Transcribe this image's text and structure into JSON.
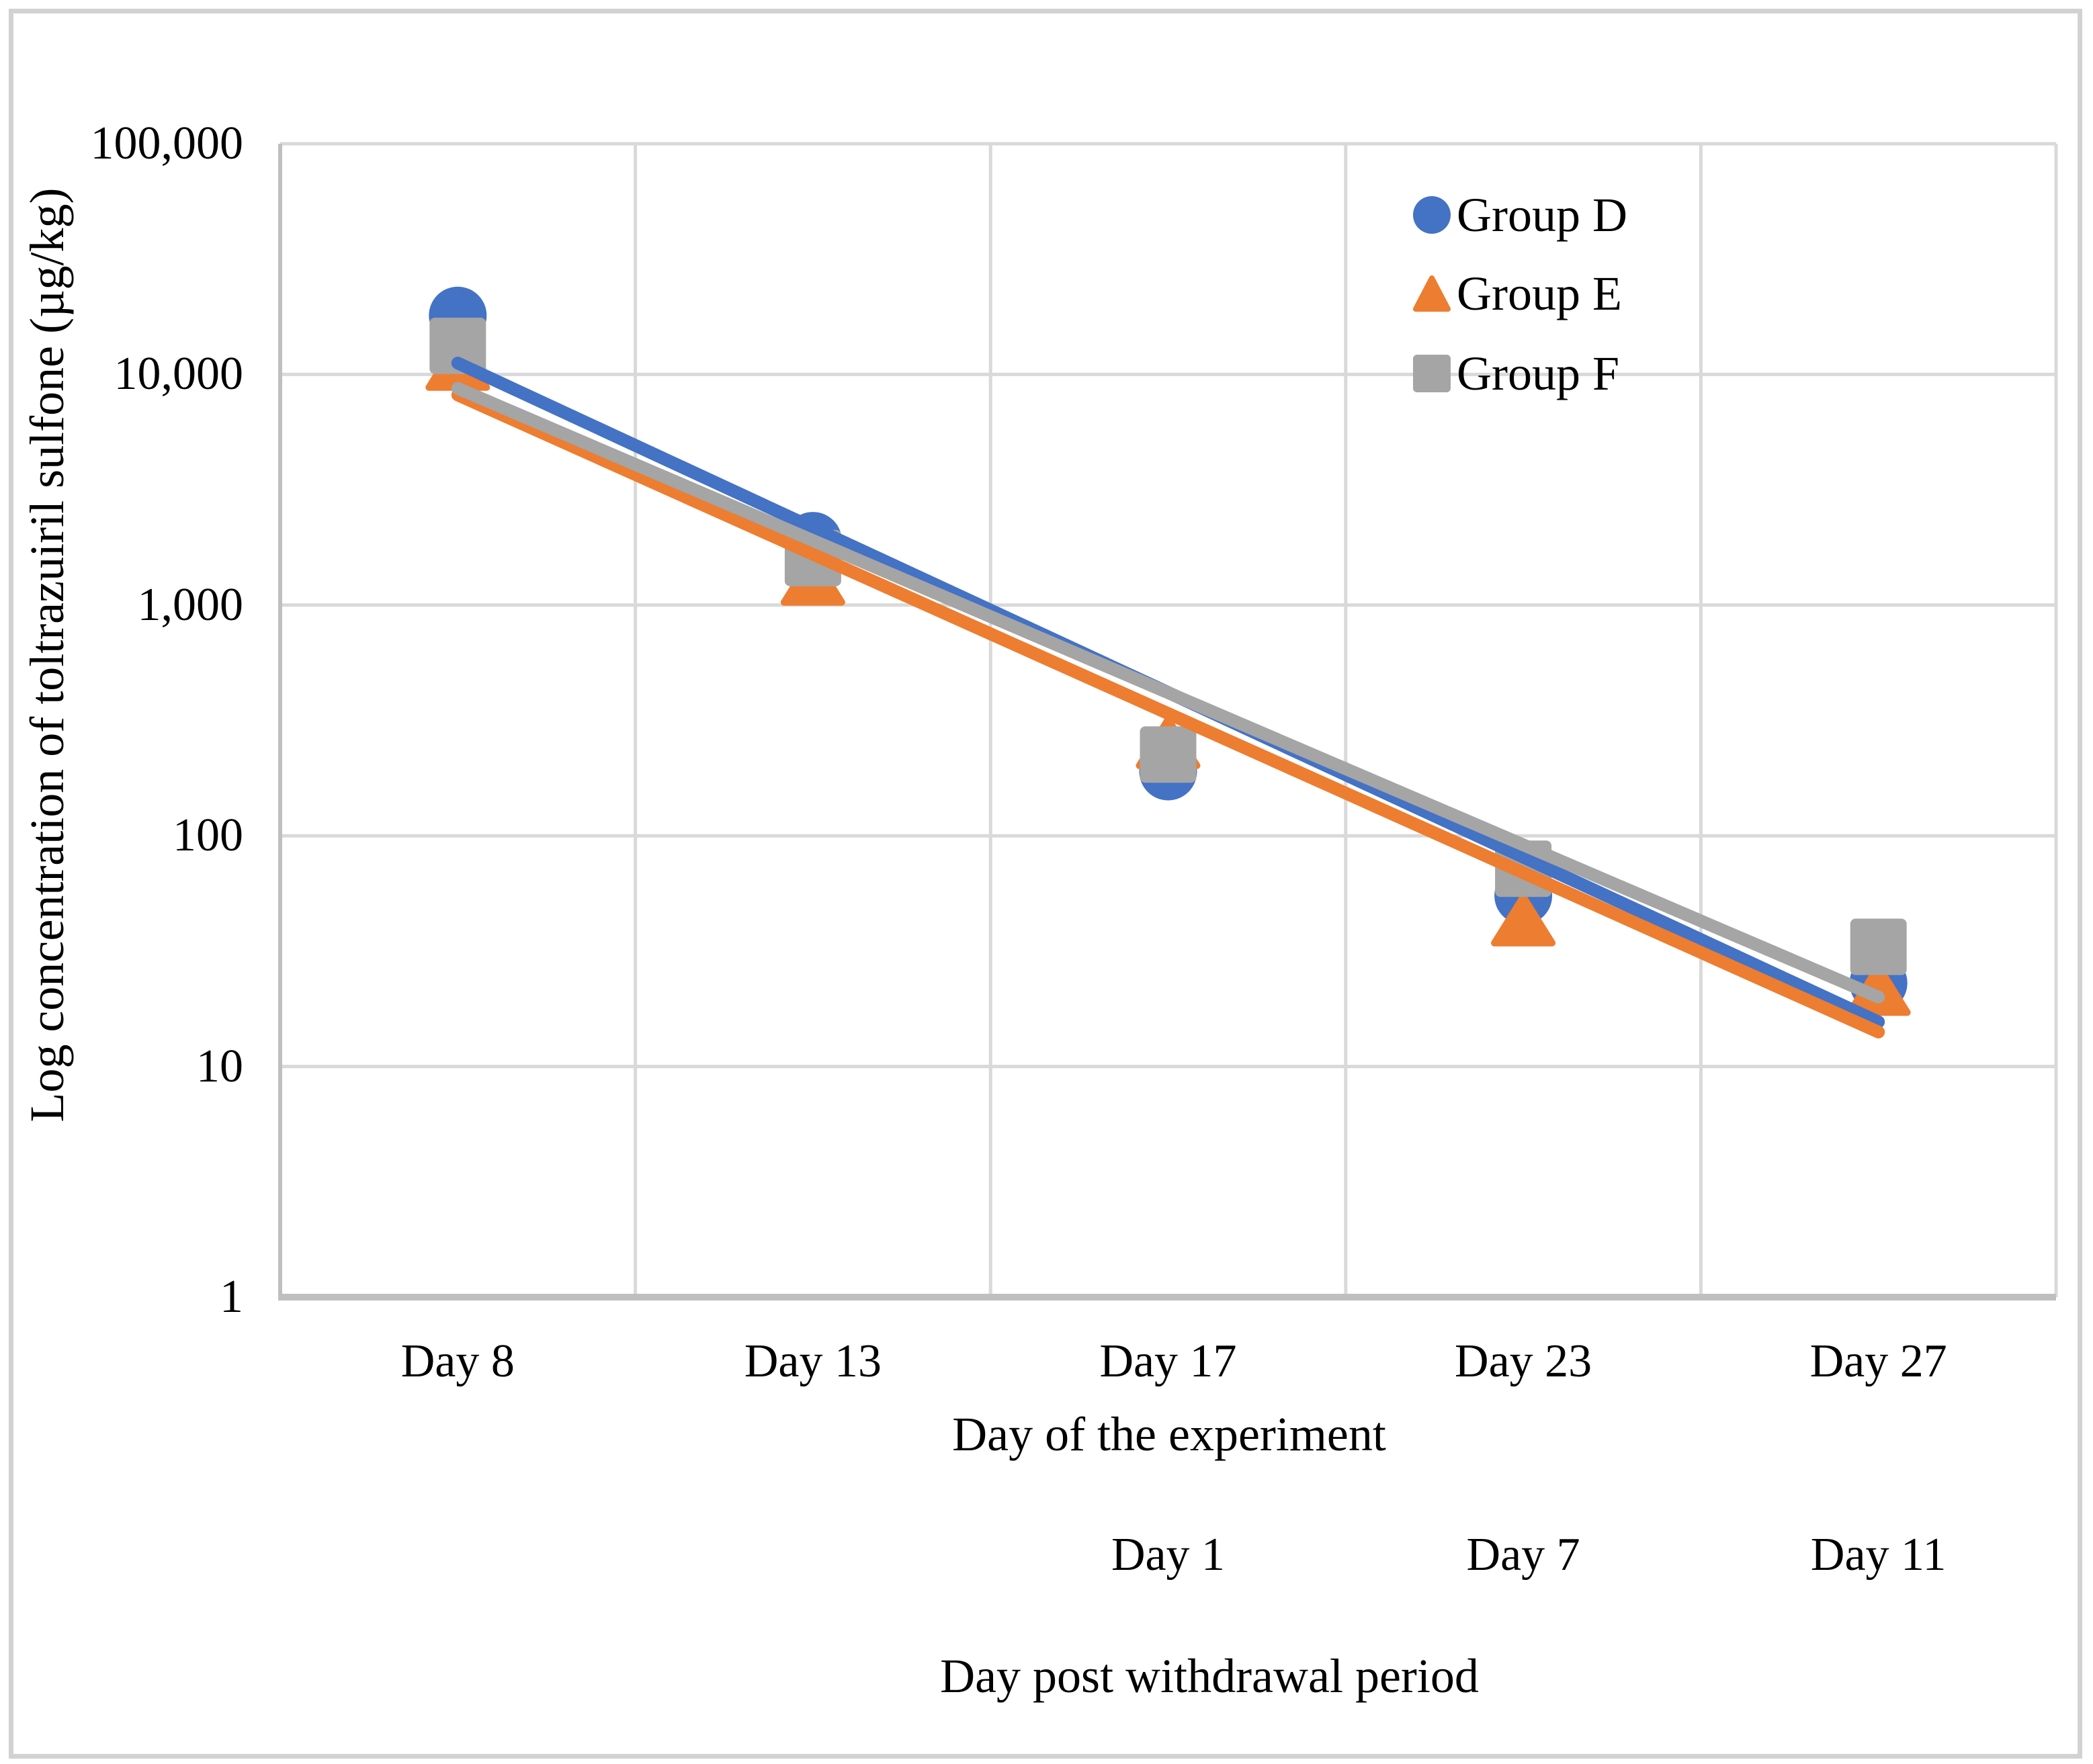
{
  "figure": {
    "ylabel": "Log concentration of toltrazuiril sulfone (µg/kg)",
    "xlabel": "Day of the experiment",
    "xlabel_secondary": "Day post withdrawal period"
  },
  "chart_data": {
    "type": "scatter",
    "y_scale": "log",
    "ylim": [
      1,
      100000
    ],
    "yticks": [
      "100,000",
      "10,000",
      "1,000",
      "100",
      "10",
      "1"
    ],
    "categories": [
      "Day 8",
      "Day 13",
      "Day 17",
      "Day 23",
      "Day 27"
    ],
    "secondary_categories": [
      {
        "label": "Day 1",
        "category_index": 2
      },
      {
        "label": "Day 7",
        "category_index": 3
      },
      {
        "label": "Day 11",
        "category_index": 4
      }
    ],
    "grid": true,
    "legend_position": "top-right",
    "series": [
      {
        "name": "Group D",
        "marker": "circle",
        "color": "#4472C4",
        "values": [
          18000,
          1900,
          190,
          55,
          23
        ]
      },
      {
        "name": "Group E",
        "marker": "triangle",
        "color": "#ED7D31",
        "values": [
          10250,
          1200,
          235,
          40,
          20
        ]
      },
      {
        "name": "Group F",
        "marker": "square",
        "color": "#A5A5A5",
        "values": [
          13300,
          1600,
          225,
          72,
          33
        ]
      }
    ],
    "trendlines": [
      {
        "series": "Group D",
        "color": "#4472C4",
        "value_start": 11200,
        "value_end": 15.6
      },
      {
        "series": "Group E",
        "color": "#ED7D31",
        "value_start": 8150,
        "value_end": 14.1
      },
      {
        "series": "Group F",
        "color": "#A5A5A5",
        "value_start": 8700,
        "value_end": 20
      }
    ],
    "colors": {
      "gridline": "#D9D9D9",
      "axis_line": "#BFBFBF",
      "border": "#D2D2D2",
      "text": "#000000",
      "background": "#FFFFFF"
    }
  }
}
